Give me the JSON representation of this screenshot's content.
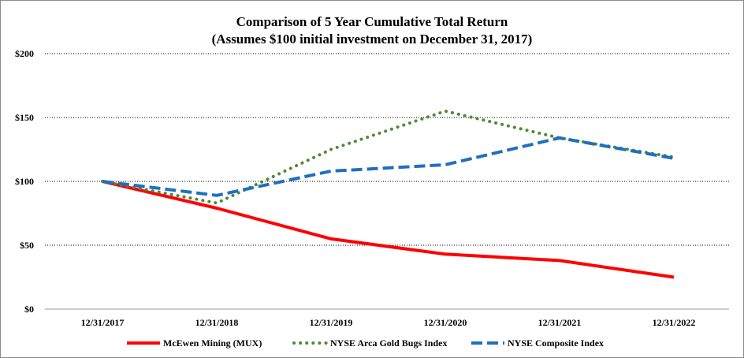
{
  "chart_data": {
    "type": "line",
    "title": "Comparison of 5 Year Cumulative Total Return",
    "subtitle": "(Assumes $100 initial investment on December 31, 2017)",
    "categories": [
      "12/31/2017",
      "12/31/2018",
      "12/31/2019",
      "12/31/2020",
      "12/31/2021",
      "12/31/2022"
    ],
    "ylim": [
      0,
      200
    ],
    "yticks": [
      0,
      50,
      100,
      150,
      200
    ],
    "ytick_labels": [
      "$0",
      "$50",
      "$100",
      "$150",
      "$200"
    ],
    "grid": true,
    "legend_position": "bottom",
    "series": [
      {
        "name": "McEwen Mining (MUX)",
        "values": [
          100,
          79,
          55,
          43,
          38,
          25
        ],
        "color": "#ff0000",
        "style": "solid"
      },
      {
        "name": "NYSE Arca Gold Bugs Index",
        "values": [
          100,
          83,
          125,
          155,
          134,
          119
        ],
        "color": "#4e8a34",
        "style": "dotted"
      },
      {
        "name": "NYSE Composite Index",
        "values": [
          100,
          89,
          108,
          113,
          134,
          118
        ],
        "color": "#1f6fbf",
        "style": "dashed"
      }
    ]
  }
}
